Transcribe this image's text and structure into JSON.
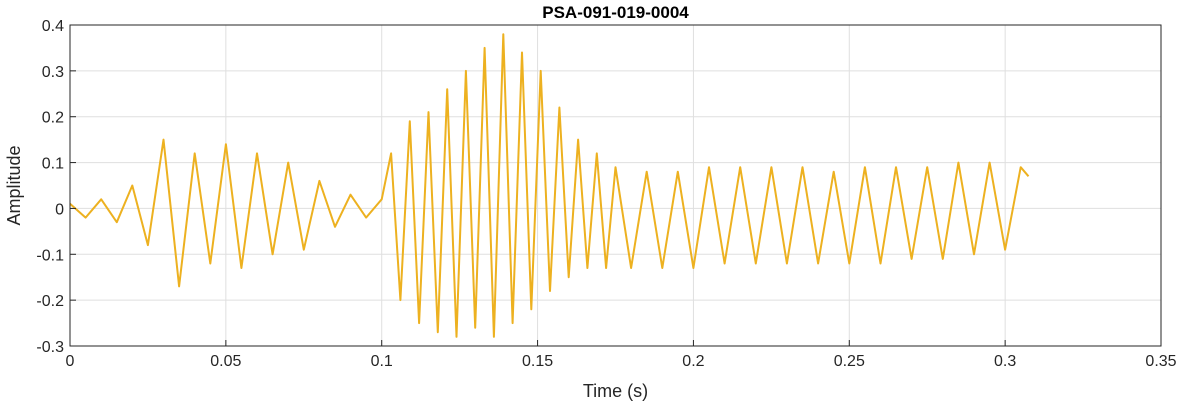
{
  "chart_data": {
    "type": "line",
    "title": "PSA-091-019-0004",
    "xlabel": "Time (s)",
    "ylabel": "Amplitude",
    "xlim": [
      0,
      0.35
    ],
    "ylim": [
      -0.3,
      0.4
    ],
    "xticks": [
      0,
      0.05,
      0.1,
      0.15,
      0.2,
      0.25,
      0.3,
      0.35
    ],
    "xtick_labels": [
      "0",
      "0.05",
      "0.1",
      "0.15",
      "0.2",
      "0.25",
      "0.3",
      "0.35"
    ],
    "yticks": [
      -0.3,
      -0.2,
      -0.1,
      0,
      0.1,
      0.2,
      0.3,
      0.4
    ],
    "ytick_labels": [
      "-0.3",
      "-0.2",
      "-0.1",
      "0",
      "0.1",
      "0.2",
      "0.3",
      "0.4"
    ],
    "grid": true,
    "line_color": "#EDB120",
    "series": [
      {
        "x": [
          0,
          0.005,
          0.01,
          0.015,
          0.02,
          0.025,
          0.03,
          0.035,
          0.04,
          0.045,
          0.05,
          0.055,
          0.06,
          0.065,
          0.07,
          0.075,
          0.08,
          0.085,
          0.09,
          0.095,
          0.1,
          0.103,
          0.106,
          0.109,
          0.112,
          0.115,
          0.118,
          0.121,
          0.124,
          0.127,
          0.13,
          0.133,
          0.136,
          0.139,
          0.142,
          0.145,
          0.148,
          0.151,
          0.154,
          0.157,
          0.16,
          0.163,
          0.166,
          0.169,
          0.172,
          0.175,
          0.18,
          0.185,
          0.19,
          0.195,
          0.2,
          0.205,
          0.21,
          0.215,
          0.22,
          0.225,
          0.23,
          0.235,
          0.24,
          0.245,
          0.25,
          0.255,
          0.26,
          0.265,
          0.27,
          0.275,
          0.28,
          0.285,
          0.29,
          0.295,
          0.3,
          0.305,
          0.3075
        ],
        "y": [
          0.01,
          -0.02,
          0.02,
          -0.03,
          0.05,
          -0.08,
          0.15,
          -0.17,
          0.12,
          -0.12,
          0.14,
          -0.13,
          0.12,
          -0.1,
          0.1,
          -0.09,
          0.06,
          -0.04,
          0.03,
          -0.02,
          0.02,
          0.12,
          -0.2,
          0.19,
          -0.25,
          0.21,
          -0.27,
          0.26,
          -0.28,
          0.3,
          -0.26,
          0.35,
          -0.28,
          0.38,
          -0.25,
          0.34,
          -0.22,
          0.3,
          -0.18,
          0.22,
          -0.15,
          0.15,
          -0.13,
          0.12,
          -0.13,
          0.09,
          -0.13,
          0.08,
          -0.13,
          0.08,
          -0.13,
          0.09,
          -0.12,
          0.09,
          -0.12,
          0.09,
          -0.12,
          0.09,
          -0.12,
          0.08,
          -0.12,
          0.09,
          -0.12,
          0.09,
          -0.11,
          0.09,
          -0.11,
          0.1,
          -0.1,
          0.1,
          -0.09,
          0.09,
          0.07
        ]
      }
    ]
  }
}
